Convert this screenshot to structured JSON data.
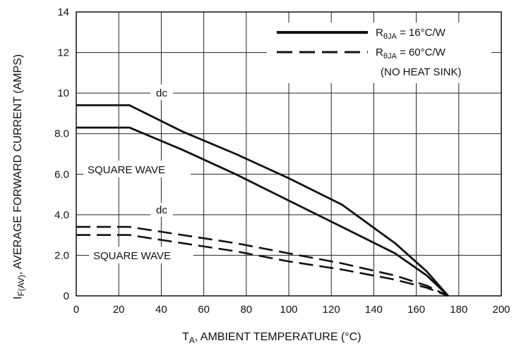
{
  "chart_data": {
    "type": "line",
    "xlabel": {
      "main": "T",
      "sub": "A",
      "rest": ", AMBIENT TEMPERATURE (°C)"
    },
    "ylabel": {
      "main": "I",
      "sub": "F(AV)",
      "rest": ", AVERAGE FORWARD CURRENT (AMPS)"
    },
    "xlim": [
      0,
      200
    ],
    "ylim": [
      0,
      14
    ],
    "x_ticks": [
      0,
      20,
      40,
      60,
      80,
      100,
      120,
      140,
      160,
      180,
      200
    ],
    "y_ticks": [
      0,
      2.0,
      4.0,
      6.0,
      8.0,
      10,
      12,
      14
    ],
    "y_tick_labels": [
      "0",
      "2.0",
      "4.0",
      "6.0",
      "8.0",
      "10",
      "12",
      "14"
    ],
    "grid": true,
    "legend": {
      "placement": "top-right",
      "entries": [
        {
          "style": "solid",
          "text": "R",
          "sub": "θJA",
          "tail": " = 16°C/W"
        },
        {
          "style": "dashed",
          "text": "R",
          "sub": "θJA",
          "tail": " = 60°C/W",
          "note": "(NO HEAT SINK)"
        }
      ]
    },
    "series": [
      {
        "label": "dc",
        "group": "solid",
        "x": [
          0,
          25,
          50,
          75,
          100,
          125,
          150,
          165,
          175
        ],
        "y": [
          9.4,
          9.4,
          8.1,
          7.0,
          5.8,
          4.5,
          2.6,
          1.2,
          0
        ]
      },
      {
        "label": "SQUARE WAVE",
        "group": "solid",
        "x": [
          0,
          25,
          50,
          75,
          100,
          125,
          150,
          165,
          175
        ],
        "y": [
          8.3,
          8.3,
          7.2,
          6.0,
          4.7,
          3.4,
          2.1,
          1.0,
          0
        ]
      },
      {
        "label": "dc",
        "group": "dashed",
        "x": [
          0,
          25,
          50,
          75,
          100,
          125,
          150,
          165,
          175
        ],
        "y": [
          3.4,
          3.4,
          3.0,
          2.6,
          2.1,
          1.6,
          1.0,
          0.5,
          0
        ]
      },
      {
        "label": "SQUARE WAVE",
        "group": "dashed",
        "x": [
          0,
          25,
          50,
          75,
          100,
          125,
          150,
          165,
          175
        ],
        "y": [
          3.0,
          3.0,
          2.6,
          2.2,
          1.7,
          1.3,
          0.8,
          0.4,
          0
        ]
      }
    ],
    "annotations": [
      "dc",
      "SQUARE WAVE",
      "dc",
      "SQUARE WAVE"
    ]
  }
}
